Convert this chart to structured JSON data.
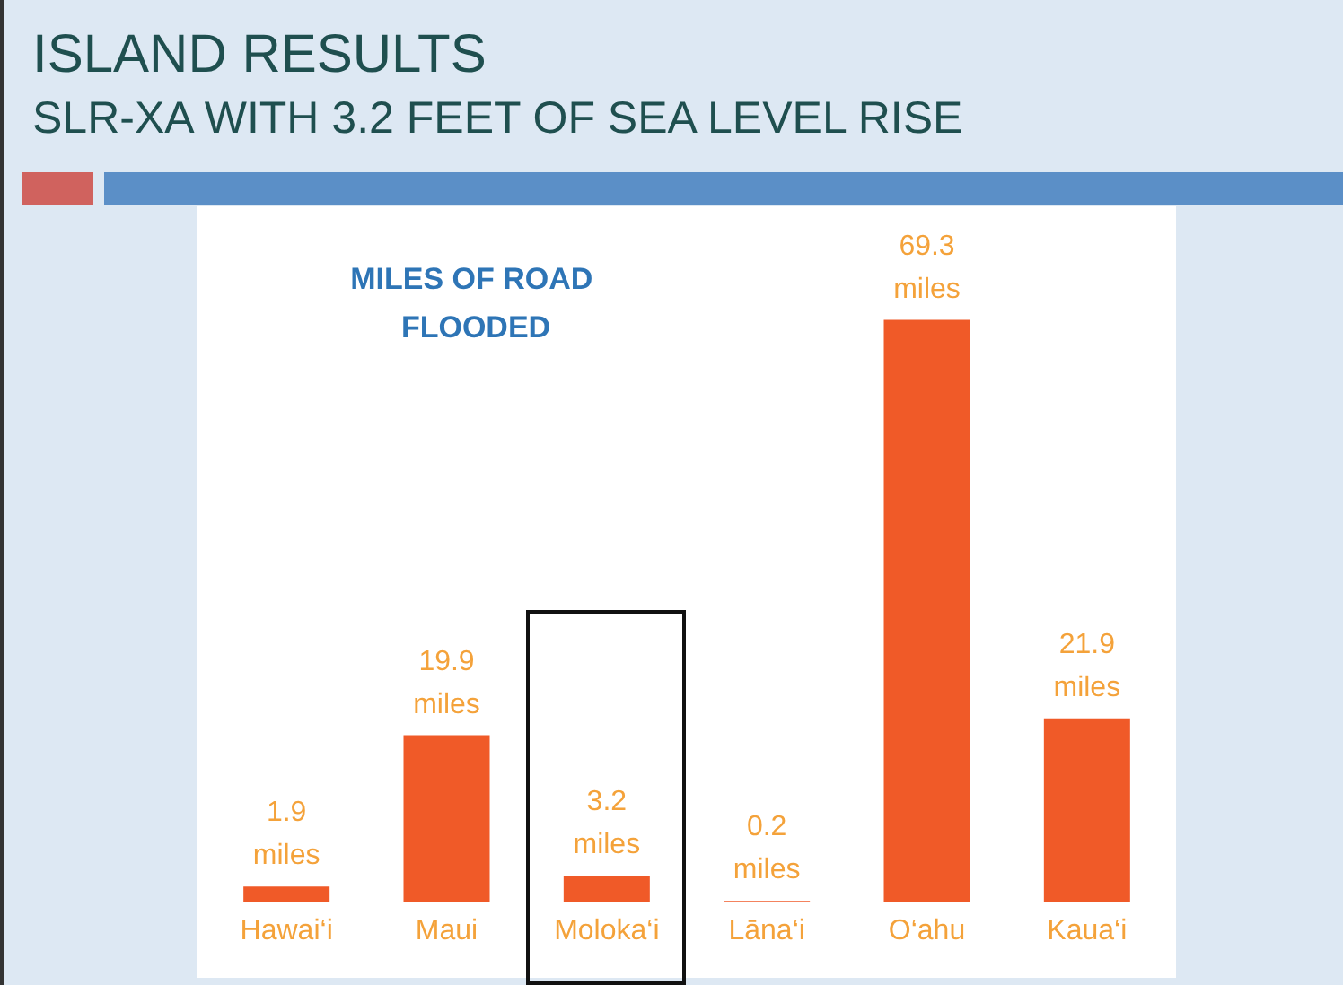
{
  "chart_data": {
    "type": "bar",
    "title": "ISLAND RESULTS",
    "subtitle": "SLR-XA WITH 3.2 FEET OF SEA LEVEL RISE",
    "annotations": [
      "MILES OF ROAD FLOODED"
    ],
    "categories": [
      "Hawai‘i",
      "Maui",
      "Moloka‘i",
      "Lāna‘i",
      "O‘ahu",
      "Kaua‘i"
    ],
    "values": [
      1.9,
      19.9,
      3.2,
      0.2,
      69.3,
      21.9
    ],
    "value_labels": [
      "1.9 miles",
      "19.9 miles",
      "3.2 miles",
      "0.2 miles",
      "69.3 miles",
      "21.9 miles"
    ],
    "color": "#f05a28"
  }
}
